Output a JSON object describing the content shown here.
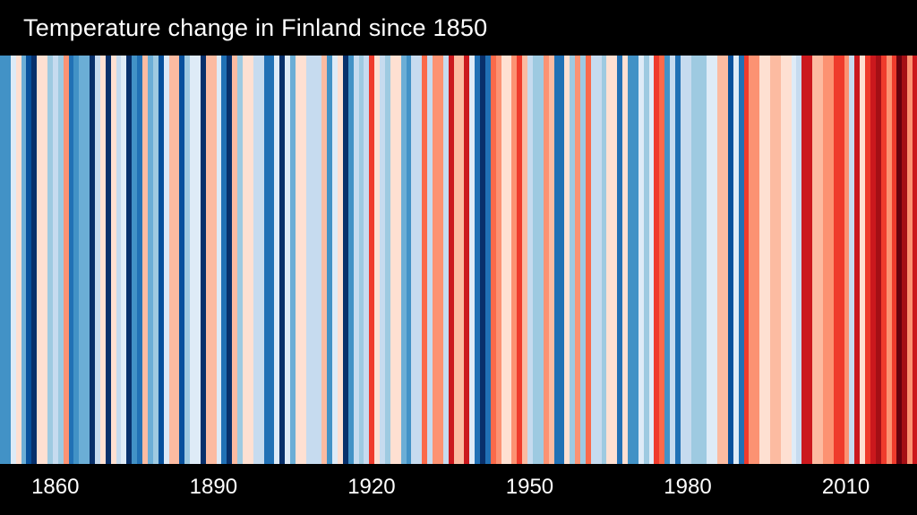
{
  "title": "Temperature change in Finland since 1850",
  "colors": {
    "background": "#000000",
    "title_text": "#ffffff",
    "axis_text": "#ffffff"
  },
  "chart_data": {
    "type": "heatmap",
    "subtype": "warming-stripes",
    "title": "Temperature change in Finland since 1850",
    "xlabel": "",
    "ylabel": "",
    "legend": "none",
    "grid": false,
    "start_year": 1850,
    "end_year": 2023,
    "x_tick_labels": [
      "1860",
      "1890",
      "1920",
      "1950",
      "1980",
      "2010"
    ],
    "palette_cold_to_warm": [
      "#08306b",
      "#08519c",
      "#2171b5",
      "#4292c6",
      "#6baed6",
      "#9ecae1",
      "#c6dbef",
      "#deebf7",
      "#fee0d2",
      "#fcbba1",
      "#fc9272",
      "#fb6a4a",
      "#ef3b2c",
      "#cb181d",
      "#a50f15",
      "#67000d"
    ],
    "colors": [
      "#4292c6",
      "#4292c6",
      "#deebf7",
      "#fee0d2",
      "#6baed6",
      "#08519c",
      "#08306b",
      "#fee0d2",
      "#fee0d2",
      "#9ecae1",
      "#c6dbef",
      "#9ecae1",
      "#fc9272",
      "#2171b5",
      "#4292c6",
      "#6baed6",
      "#6baed6",
      "#08306b",
      "#c6dbef",
      "#fee0d2",
      "#08306b",
      "#fee0d2",
      "#c6dbef",
      "#deebf7",
      "#08306b",
      "#4292c6",
      "#2171b5",
      "#fcbba1",
      "#6baed6",
      "#9ecae1",
      "#08519c",
      "#deebf7",
      "#fcbba1",
      "#fcbba1",
      "#08519c",
      "#9ecae1",
      "#deebf7",
      "#deebf7",
      "#08306b",
      "#fcbba1",
      "#fcbba1",
      "#deebf7",
      "#2171b5",
      "#08306b",
      "#fcbba1",
      "#9ecae1",
      "#fee0d2",
      "#fee0d2",
      "#c6dbef",
      "#c6dbef",
      "#2171b5",
      "#2171b5",
      "#deebf7",
      "#08306b",
      "#deebf7",
      "#6baed6",
      "#fee0d2",
      "#fee0d2",
      "#c6dbef",
      "#c6dbef",
      "#c6dbef",
      "#fcbba1",
      "#4292c6",
      "#deebf7",
      "#fee0d2",
      "#08306b",
      "#4292c6",
      "#c6dbef",
      "#9ecae1",
      "#c6dbef",
      "#ef3b2c",
      "#fee0d2",
      "#c6dbef",
      "#9ecae1",
      "#fee0d2",
      "#fee0d2",
      "#6baed6",
      "#4292c6",
      "#c6dbef",
      "#c6dbef",
      "#fb6a4a",
      "#c6dbef",
      "#fc9272",
      "#fc9272",
      "#c6dbef",
      "#cb181d",
      "#fcbba1",
      "#fcbba1",
      "#cb181d",
      "#deebf7",
      "#2171b5",
      "#08306b",
      "#2171b5",
      "#fb6a4a",
      "#fc9272",
      "#fee0d2",
      "#fee0d2",
      "#fc9272",
      "#ef3b2c",
      "#fcbba1",
      "#c6dbef",
      "#9ecae1",
      "#9ecae1",
      "#fc9272",
      "#fcbba1",
      "#2171b5",
      "#2171b5",
      "#fee0d2",
      "#9ecae1",
      "#fc9272",
      "#9ecae1",
      "#fb6a4a",
      "#c6dbef",
      "#c6dbef",
      "#9ecae1",
      "#fee0d2",
      "#fee0d2",
      "#2171b5",
      "#fee0d2",
      "#4292c6",
      "#4292c6",
      "#deebf7",
      "#9ecae1",
      "#deebf7",
      "#ef3b2c",
      "#fb6a4a",
      "#4292c6",
      "#c6dbef",
      "#2171b5",
      "#c6dbef",
      "#c6dbef",
      "#9ecae1",
      "#9ecae1",
      "#9ecae1",
      "#deebf7",
      "#deebf7",
      "#fcbba1",
      "#fcbba1",
      "#08519c",
      "#deebf7",
      "#2171b5",
      "#ef3b2c",
      "#fc9272",
      "#fc9272",
      "#fee0d2",
      "#fee0d2",
      "#fcbba1",
      "#fcbba1",
      "#fee0d2",
      "#fee0d2",
      "#deebf7",
      "#c6dbef",
      "#cb181d",
      "#cb181d",
      "#fcbba1",
      "#fcbba1",
      "#fc9272",
      "#fc9272",
      "#ef3b2c",
      "#ef3b2c",
      "#fc9272",
      "#c6dbef",
      "#cb181d",
      "#fee0d2",
      "#ef3b2c",
      "#cb181d",
      "#a50f15",
      "#ef3b2c",
      "#fc9272",
      "#ef3b2c",
      "#67000d",
      "#a50f15",
      "#fc9272",
      "#cb181d"
    ]
  }
}
